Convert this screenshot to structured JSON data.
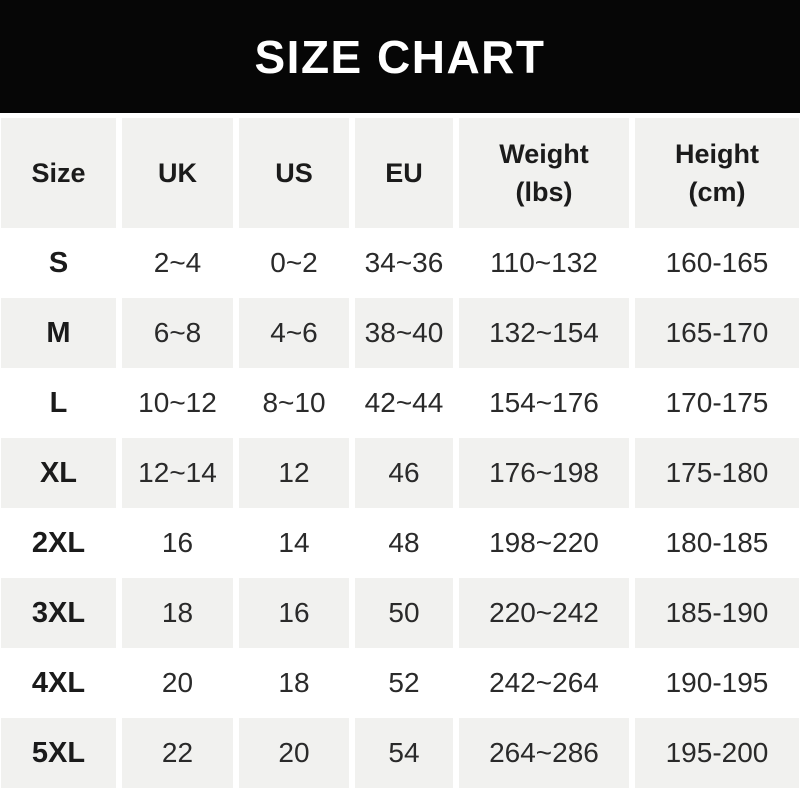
{
  "banner": {
    "title": "SIZE CHART"
  },
  "colors": {
    "banner_bg": "#060606",
    "banner_text": "#ffffff",
    "row_alt_bg": "#f1f1ef",
    "text": "#2a2a2a"
  },
  "chart_data": {
    "type": "table",
    "title": "SIZE CHART",
    "legend_position": "none",
    "grid": "alternating-row-shading",
    "columns": [
      {
        "key": "size",
        "label": "Size"
      },
      {
        "key": "uk",
        "label": "UK"
      },
      {
        "key": "us",
        "label": "US"
      },
      {
        "key": "eu",
        "label": "EU"
      },
      {
        "key": "weight",
        "label": "Weight",
        "sub": "(lbs)"
      },
      {
        "key": "height",
        "label": "Height",
        "sub": "(cm)"
      }
    ],
    "rows": [
      [
        "S",
        "2~4",
        "0~2",
        "34~36",
        "110~132",
        "160-165"
      ],
      [
        "M",
        "6~8",
        "4~6",
        "38~40",
        "132~154",
        "165-170"
      ],
      [
        "L",
        "10~12",
        "8~10",
        "42~44",
        "154~176",
        "170-175"
      ],
      [
        "XL",
        "12~14",
        "12",
        "46",
        "176~198",
        "175-180"
      ],
      [
        "2XL",
        "16",
        "14",
        "48",
        "198~220",
        "180-185"
      ],
      [
        "3XL",
        "18",
        "16",
        "50",
        "220~242",
        "185-190"
      ],
      [
        "4XL",
        "20",
        "18",
        "52",
        "242~264",
        "190-195"
      ],
      [
        "5XL",
        "22",
        "20",
        "54",
        "264~286",
        "195-200"
      ]
    ]
  }
}
